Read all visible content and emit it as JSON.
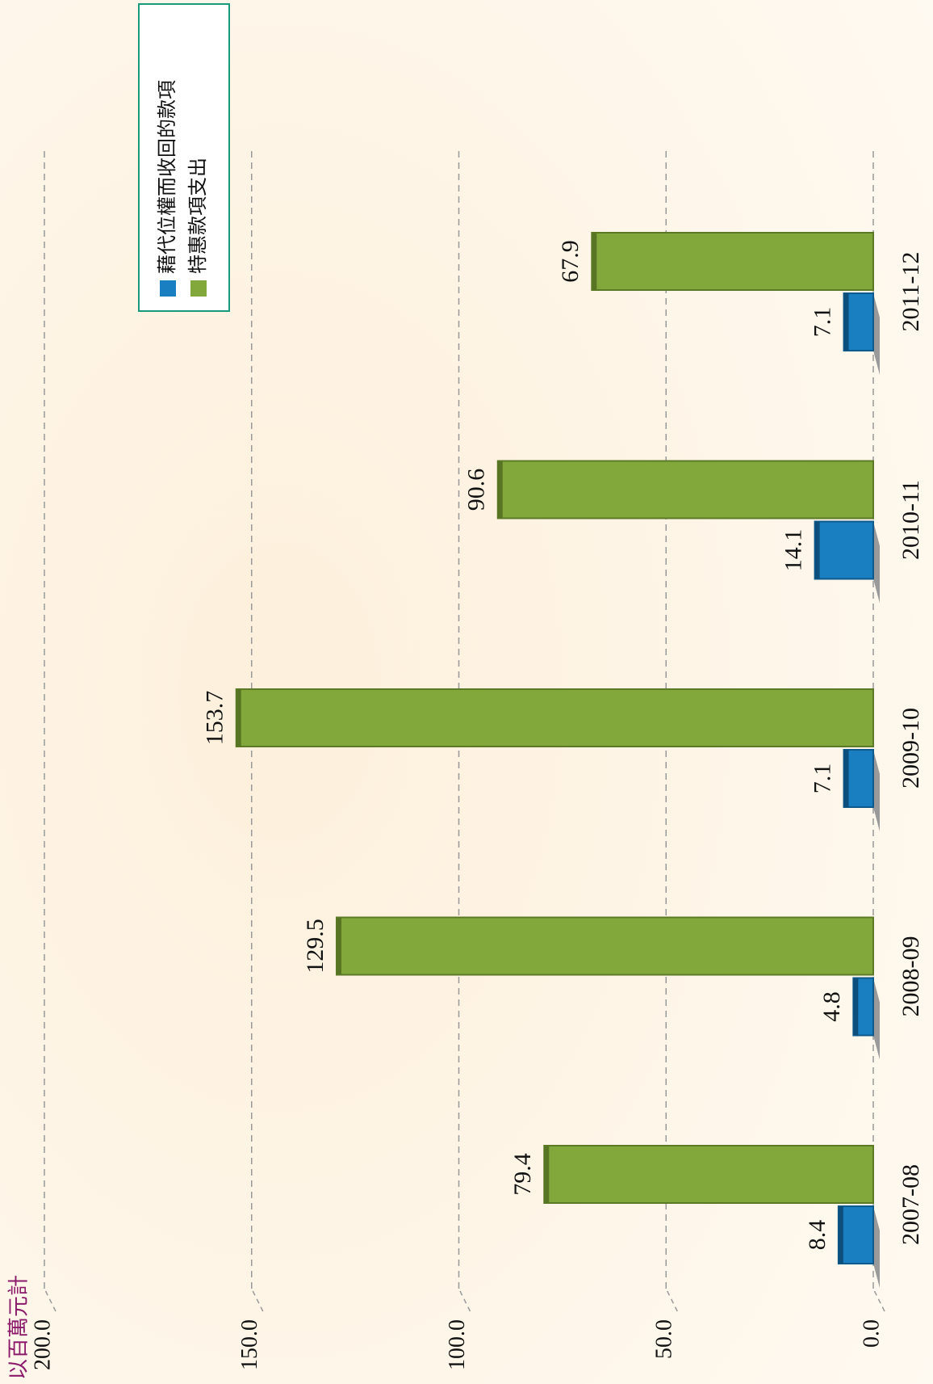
{
  "chart_data": {
    "type": "bar",
    "title": "以百萬元計",
    "categories": [
      "2007-08",
      "2008-09",
      "2009-10",
      "2010-11",
      "2011-12"
    ],
    "series": [
      {
        "name": "藉代位權而收回的款項",
        "color": "#1a7fc1",
        "values": [
          8.4,
          4.8,
          7.1,
          14.1,
          7.1
        ]
      },
      {
        "name": "特惠款項支出",
        "color": "#82a83c",
        "values": [
          79.4,
          129.5,
          153.7,
          90.6,
          67.9
        ]
      }
    ],
    "ylim": [
      0,
      200
    ],
    "yticks": [
      {
        "value": 0,
        "label": "0.0"
      },
      {
        "value": 50,
        "label": "50.0"
      },
      {
        "value": 100,
        "label": "100.0"
      },
      {
        "value": 150,
        "label": "150.0"
      },
      {
        "value": 200,
        "label": "200.0"
      }
    ],
    "grid": true,
    "legend": "top-right"
  }
}
